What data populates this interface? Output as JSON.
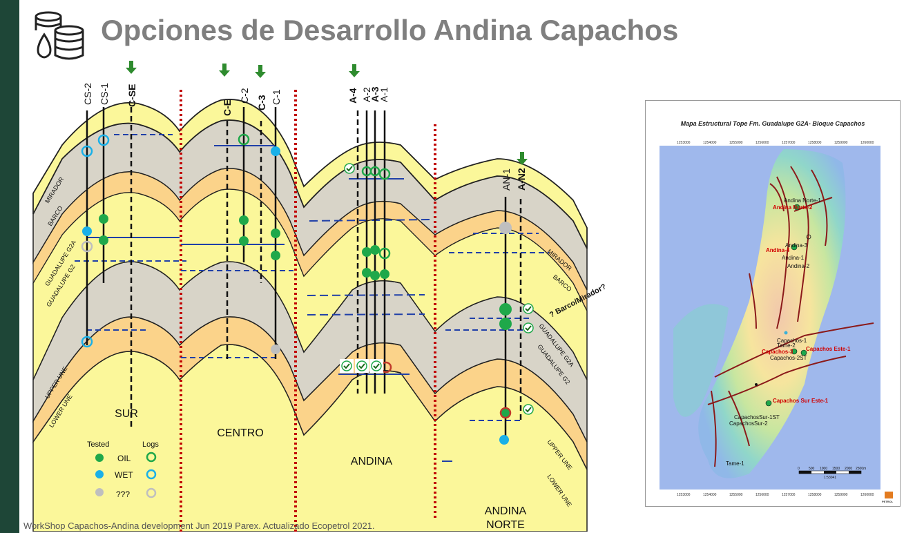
{
  "title": "Opciones de Desarrollo Andina Capachos",
  "footer": "WorkShop Capachos-Andina development Jun 2019 Parex.   Actualizado Ecopetrol 2021.",
  "colors": {
    "sidebar": "#1e4637",
    "title": "#7f7f7f",
    "yellow": "#fbf79a",
    "orange": "#fbd38a",
    "grey": "#d8d4c8",
    "oil": "#1fa84a",
    "wet": "#1ab0e8",
    "unknown": "#bfbfbf",
    "fault": "#c00000",
    "arrow": "#2e8b2e"
  },
  "section": {
    "blocks": [
      "SUR",
      "CENTRO",
      "ANDINA",
      "ANDINA NORTE"
    ],
    "wells": {
      "cs2": "CS-2",
      "cs1": "CS-1",
      "cse": "C-SE",
      "ce": "C-E",
      "c2": "C-2",
      "c3": "C-3",
      "c1": "C-1",
      "a4": "A-4",
      "a2": "A-2",
      "a3": "A-3",
      "a1": "A-1",
      "an1": "AN-1",
      "an2": "A-N2"
    },
    "formations": {
      "mirador": "MIRADOR",
      "barco": "BARCO",
      "g2a": "GUADALUPE G2A",
      "g2": "GUADALUPE G2",
      "upper": "UPPER UNE",
      "lower": "LOWER UNE",
      "mirador_r": "MIRADOR",
      "barco_r": "BARCO",
      "g2a_r": "GUADALUPE G2A",
      "g2_r": "GUADALUPE G2",
      "upper_r": "UPPER UNE",
      "lower_r": "LOWER UNE"
    },
    "annotation": "? Barco/Mirador?",
    "legend": {
      "tested": "Tested",
      "logs": "Logs",
      "oil": "OIL",
      "wet": "WET",
      "unknown": "???"
    }
  },
  "map": {
    "title": "Mapa Estructural Tope Fm. Guadalupe G2A- Bloque Capachos",
    "x_ticks": [
      "1253000",
      "1254000",
      "1255000",
      "1256000",
      "1257000",
      "1258000",
      "1259000",
      "1260000"
    ],
    "wells_black": [
      "Andina Norte-1",
      "Andina-3",
      "Andina-1",
      "Andina-2",
      "Capachos-1",
      "Tame-2",
      "Capachos-2ST",
      "CapachosSur-1ST",
      "CapachosSur-2",
      "Tame-1"
    ],
    "wells_red": [
      "Andina Norte-2",
      "Andina-4",
      "Capachos-3",
      "Capachos Este-1",
      "Capachos Sur Este-1"
    ],
    "scale": [
      "0",
      "500",
      "1000",
      "1500",
      "2000",
      "2500m"
    ],
    "scale_ratio": "1:53041",
    "logo": "PETROL"
  }
}
